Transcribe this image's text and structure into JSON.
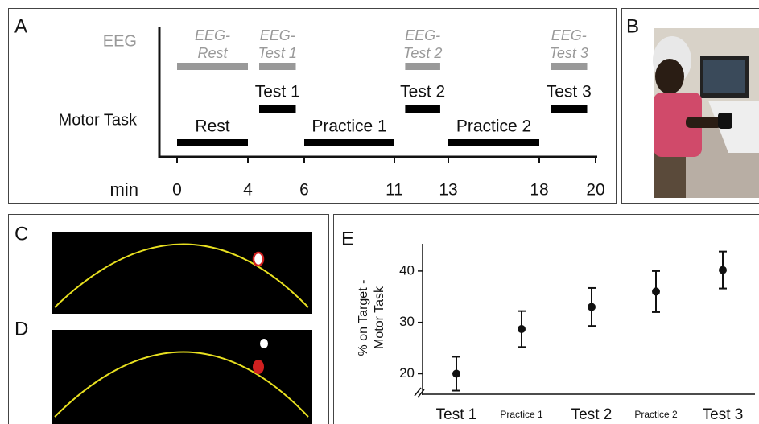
{
  "panel_a": {
    "label": "A",
    "eeg_label": "EEG",
    "motor_label": "Motor Task",
    "axis_label": "min",
    "ticks": [
      0,
      4,
      6,
      11,
      13,
      18,
      20
    ],
    "eeg_blocks": [
      {
        "label": [
          "EEG-",
          "Rest"
        ],
        "start": 0,
        "end": 4
      },
      {
        "label": [
          "EEG-",
          "Test 1"
        ],
        "start": 4.4,
        "end": 5.7
      },
      {
        "label": [
          "EEG-",
          "Test 2"
        ],
        "start": 11.4,
        "end": 12.7
      },
      {
        "label": [
          "EEG-",
          "Test 3"
        ],
        "start": 18.4,
        "end": 19.7
      }
    ],
    "motor_blocks_upper": [
      {
        "label": "Test 1",
        "start": 4.4,
        "end": 5.7
      },
      {
        "label": "Test 2",
        "start": 11.4,
        "end": 12.7
      },
      {
        "label": "Test 3",
        "start": 18.4,
        "end": 19.7
      }
    ],
    "motor_blocks_lower": [
      {
        "label": "Rest",
        "start": 0,
        "end": 4
      },
      {
        "label": "Practice 1",
        "start": 6,
        "end": 11
      },
      {
        "label": "Practice 2",
        "start": 13,
        "end": 18
      }
    ]
  },
  "panel_b": {
    "label": "B"
  },
  "panel_c": {
    "label": "C"
  },
  "panel_d": {
    "label": "D"
  },
  "chart_data": {
    "type": "errorbar",
    "label": "E",
    "ylabel": [
      "% on Target -",
      "Motor Task"
    ],
    "categories": [
      "Test 1",
      "Practice 1",
      "Test 2",
      "Practice 2",
      "Test 3"
    ],
    "values": [
      20,
      28.7,
      33,
      36,
      40.2
    ],
    "errors": [
      3.3,
      3.5,
      3.7,
      4,
      3.6
    ],
    "color": "#111111",
    "ylim": [
      16,
      45
    ],
    "yticks": [
      20,
      30,
      40
    ]
  }
}
